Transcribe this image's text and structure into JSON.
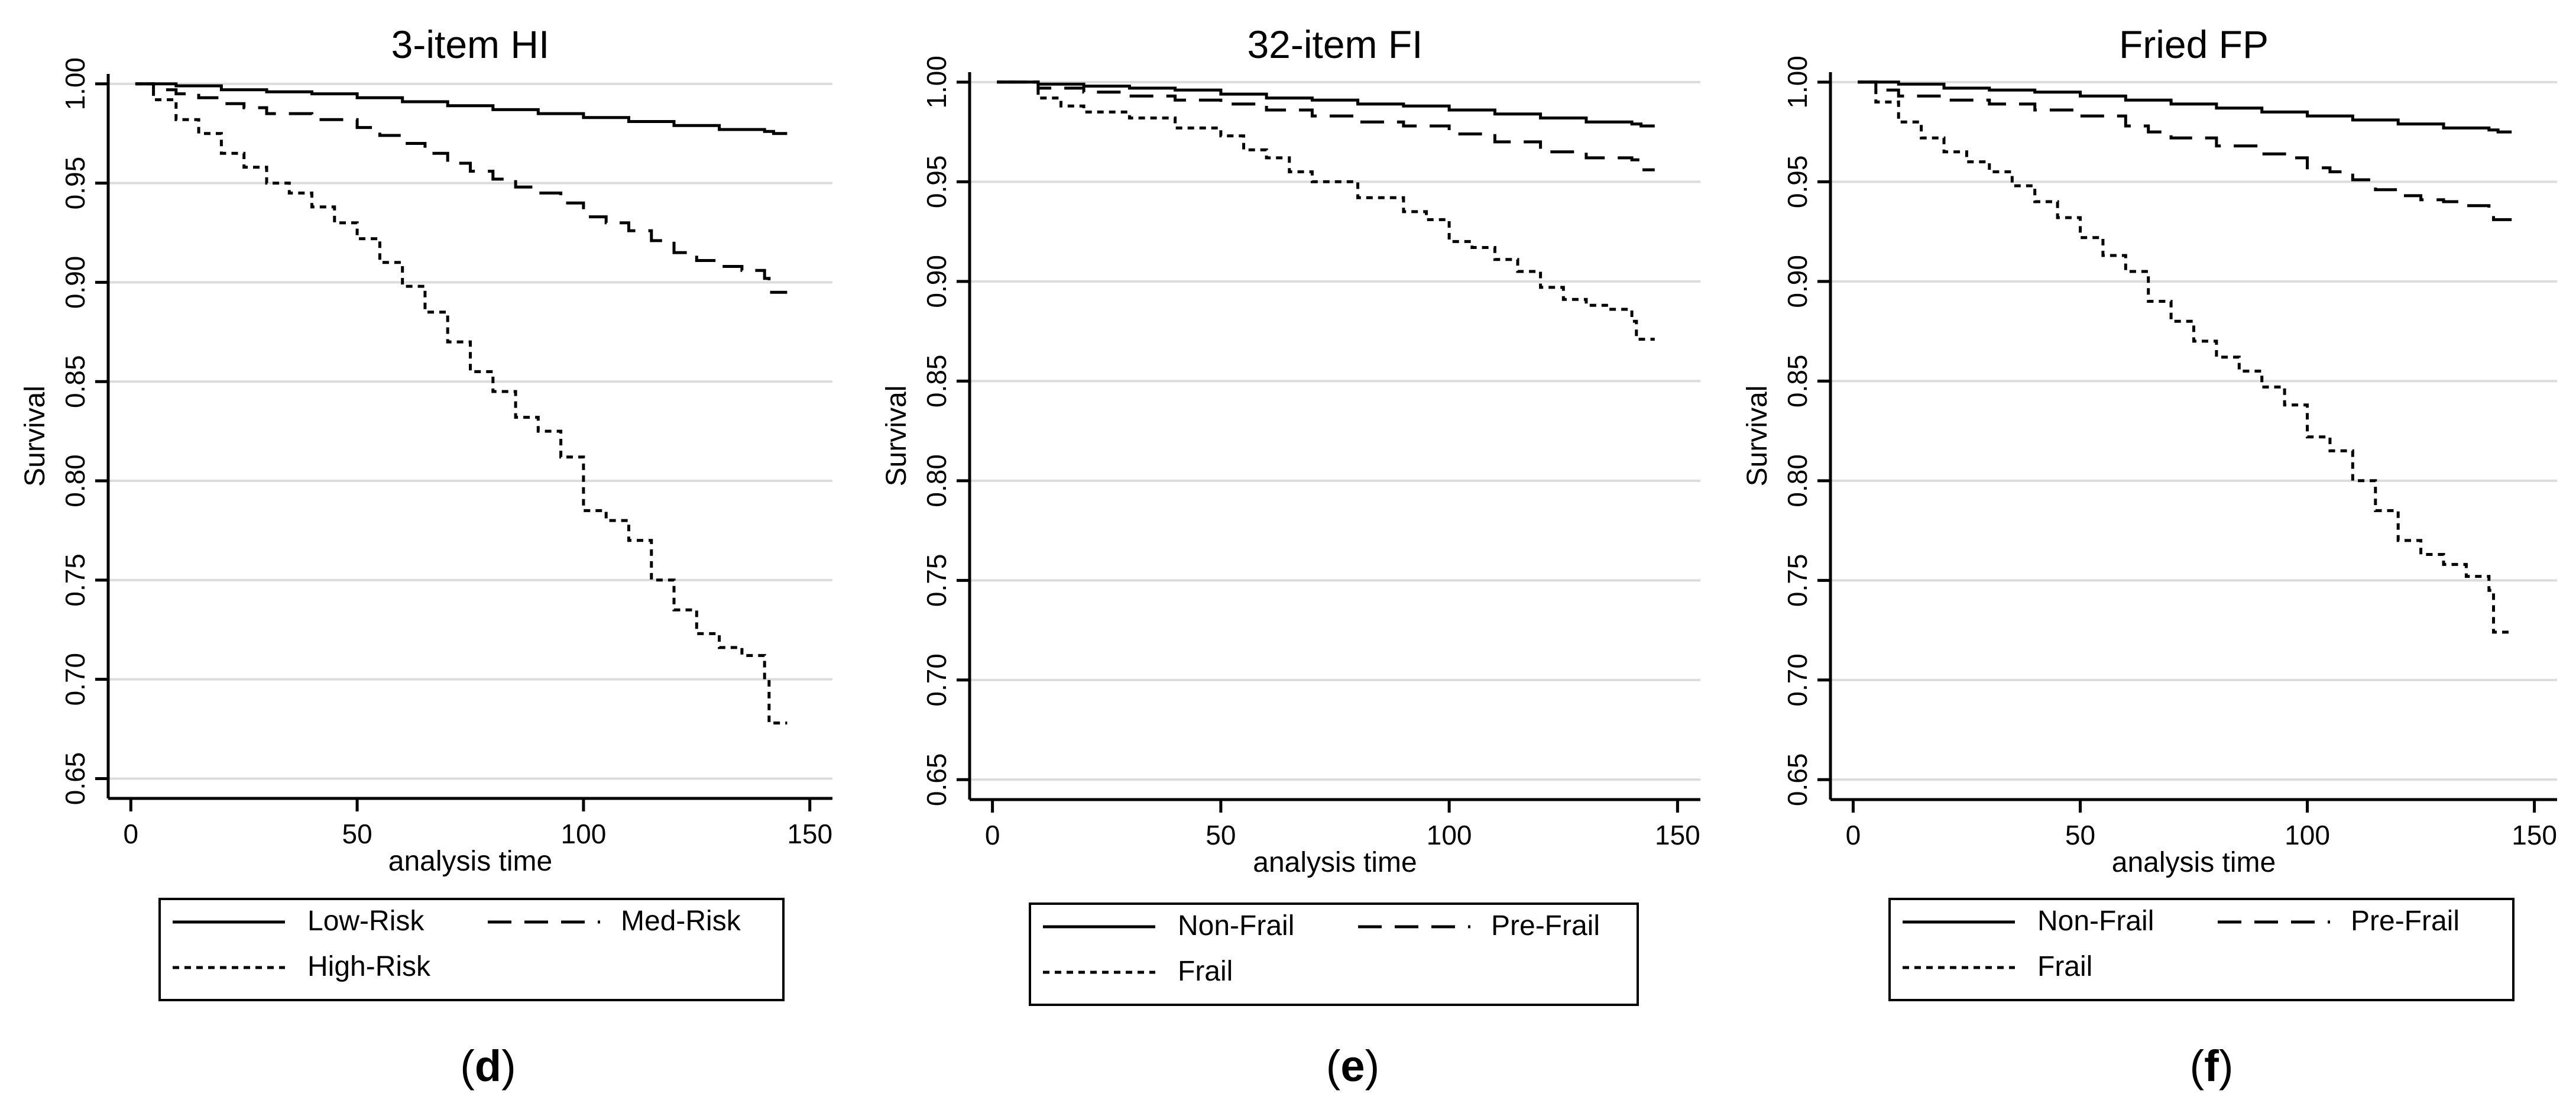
{
  "colors": {
    "background": "#ffffff",
    "grid": "#dcdcdc",
    "axis": "#000000",
    "line": "#000000"
  },
  "chart_data": [
    {
      "type": "line",
      "title": "3-item HI",
      "xlabel": "analysis time",
      "ylabel": "Survival",
      "xlim": [
        -5,
        155
      ],
      "ylim": [
        0.64,
        1.005
      ],
      "xticks": [
        0,
        50,
        100,
        150
      ],
      "xtick_labels": [
        "0",
        "50",
        "100",
        "150"
      ],
      "yticks": [
        0.65,
        0.7,
        0.75,
        0.8,
        0.85,
        0.9,
        0.95,
        1.0
      ],
      "ytick_labels": [
        "0.65",
        "0.70",
        "0.75",
        "0.80",
        "0.85",
        "0.90",
        "0.95",
        "1.00"
      ],
      "grid": true,
      "legend_position": "bottom",
      "panel_label": "(d)",
      "panel_letter": "d",
      "series": [
        {
          "name": "Low-Risk",
          "style": "solid",
          "x": [
            1,
            10,
            20,
            30,
            40,
            50,
            60,
            70,
            80,
            90,
            100,
            110,
            120,
            130,
            140,
            142,
            145
          ],
          "y": [
            1.0,
            0.999,
            0.997,
            0.996,
            0.995,
            0.993,
            0.991,
            0.989,
            0.987,
            0.985,
            0.983,
            0.981,
            0.979,
            0.977,
            0.976,
            0.975,
            0.975
          ]
        },
        {
          "name": "Med-Risk",
          "style": "dashed",
          "x": [
            1,
            5,
            10,
            15,
            20,
            25,
            30,
            40,
            50,
            55,
            60,
            65,
            70,
            75,
            80,
            85,
            90,
            95,
            100,
            105,
            110,
            115,
            120,
            125,
            130,
            135,
            140,
            141,
            145
          ],
          "y": [
            1.0,
            0.997,
            0.995,
            0.993,
            0.99,
            0.988,
            0.985,
            0.982,
            0.978,
            0.974,
            0.97,
            0.965,
            0.96,
            0.956,
            0.952,
            0.948,
            0.945,
            0.94,
            0.933,
            0.93,
            0.926,
            0.921,
            0.915,
            0.911,
            0.908,
            0.906,
            0.902,
            0.895,
            0.895
          ]
        },
        {
          "name": "High-Risk",
          "style": "dotted",
          "x": [
            1,
            5,
            10,
            15,
            20,
            25,
            30,
            35,
            40,
            45,
            50,
            55,
            60,
            65,
            70,
            75,
            80,
            85,
            90,
            95,
            100,
            105,
            110,
            115,
            120,
            125,
            130,
            135,
            140,
            141,
            145
          ],
          "y": [
            1.0,
            0.992,
            0.982,
            0.975,
            0.965,
            0.958,
            0.95,
            0.945,
            0.938,
            0.93,
            0.922,
            0.91,
            0.898,
            0.885,
            0.87,
            0.855,
            0.845,
            0.832,
            0.825,
            0.812,
            0.785,
            0.78,
            0.77,
            0.75,
            0.735,
            0.723,
            0.716,
            0.712,
            0.7,
            0.678,
            0.678
          ]
        }
      ]
    },
    {
      "type": "line",
      "title": "32-item FI",
      "xlabel": "analysis time",
      "ylabel": "Survival",
      "xlim": [
        -5,
        155
      ],
      "ylim": [
        0.64,
        1.005
      ],
      "xticks": [
        0,
        50,
        100,
        150
      ],
      "xtick_labels": [
        "0",
        "50",
        "100",
        "150"
      ],
      "yticks": [
        0.65,
        0.7,
        0.75,
        0.8,
        0.85,
        0.9,
        0.95,
        1.0
      ],
      "ytick_labels": [
        "0.65",
        "0.70",
        "0.75",
        "0.80",
        "0.85",
        "0.90",
        "0.95",
        "1.00"
      ],
      "grid": true,
      "legend_position": "bottom",
      "panel_label": "(e)",
      "panel_letter": "e",
      "series": [
        {
          "name": "Non-Frail",
          "style": "solid",
          "x": [
            1,
            10,
            20,
            30,
            40,
            50,
            60,
            70,
            80,
            90,
            100,
            110,
            120,
            130,
            140,
            142,
            145
          ],
          "y": [
            1.0,
            0.999,
            0.998,
            0.997,
            0.996,
            0.994,
            0.992,
            0.991,
            0.989,
            0.988,
            0.986,
            0.984,
            0.982,
            0.98,
            0.979,
            0.978,
            0.978
          ]
        },
        {
          "name": "Pre-Frail",
          "style": "dashed",
          "x": [
            1,
            10,
            20,
            30,
            40,
            50,
            60,
            70,
            80,
            90,
            100,
            110,
            120,
            130,
            140,
            142,
            145
          ],
          "y": [
            1.0,
            0.997,
            0.995,
            0.993,
            0.991,
            0.989,
            0.986,
            0.983,
            0.98,
            0.978,
            0.974,
            0.97,
            0.965,
            0.962,
            0.961,
            0.956,
            0.956
          ]
        },
        {
          "name": "Frail",
          "style": "dotted",
          "x": [
            1,
            10,
            15,
            20,
            30,
            40,
            50,
            55,
            60,
            65,
            70,
            80,
            90,
            95,
            100,
            105,
            110,
            115,
            120,
            125,
            130,
            135,
            140,
            141,
            145
          ],
          "y": [
            1.0,
            0.992,
            0.988,
            0.985,
            0.982,
            0.977,
            0.973,
            0.966,
            0.962,
            0.955,
            0.95,
            0.942,
            0.935,
            0.931,
            0.92,
            0.917,
            0.911,
            0.905,
            0.897,
            0.891,
            0.888,
            0.886,
            0.88,
            0.871,
            0.871
          ]
        }
      ]
    },
    {
      "type": "line",
      "title": "Fried FP",
      "xlabel": "analysis time",
      "ylabel": "Survival",
      "xlim": [
        -5,
        155
      ],
      "ylim": [
        0.64,
        1.005
      ],
      "xticks": [
        0,
        50,
        100,
        150
      ],
      "xtick_labels": [
        "0",
        "50",
        "100",
        "150"
      ],
      "yticks": [
        0.65,
        0.7,
        0.75,
        0.8,
        0.85,
        0.9,
        0.95,
        1.0
      ],
      "ytick_labels": [
        "0.65",
        "0.70",
        "0.75",
        "0.80",
        "0.85",
        "0.90",
        "0.95",
        "1.00"
      ],
      "grid": true,
      "legend_position": "bottom",
      "panel_label": "(f)",
      "panel_letter": "f",
      "series": [
        {
          "name": "Non-Frail",
          "style": "solid",
          "x": [
            1,
            10,
            20,
            30,
            40,
            50,
            60,
            70,
            80,
            90,
            100,
            110,
            120,
            130,
            140,
            142,
            145
          ],
          "y": [
            1.0,
            0.999,
            0.997,
            0.996,
            0.995,
            0.993,
            0.991,
            0.989,
            0.987,
            0.985,
            0.983,
            0.981,
            0.979,
            0.977,
            0.976,
            0.975,
            0.975
          ]
        },
        {
          "name": "Pre-Frail",
          "style": "dashed",
          "x": [
            1,
            5,
            10,
            20,
            30,
            40,
            50,
            60,
            65,
            70,
            80,
            90,
            95,
            100,
            105,
            110,
            115,
            120,
            125,
            130,
            135,
            140,
            141,
            145
          ],
          "y": [
            1.0,
            0.996,
            0.993,
            0.991,
            0.989,
            0.986,
            0.983,
            0.978,
            0.975,
            0.972,
            0.968,
            0.964,
            0.962,
            0.957,
            0.955,
            0.951,
            0.946,
            0.943,
            0.941,
            0.94,
            0.938,
            0.936,
            0.931,
            0.931
          ]
        },
        {
          "name": "Frail",
          "style": "dotted",
          "x": [
            1,
            5,
            10,
            15,
            20,
            25,
            30,
            35,
            40,
            45,
            50,
            55,
            60,
            65,
            70,
            75,
            80,
            85,
            90,
            95,
            100,
            105,
            110,
            115,
            120,
            125,
            130,
            135,
            140,
            141,
            145
          ],
          "y": [
            1.0,
            0.99,
            0.98,
            0.972,
            0.965,
            0.96,
            0.955,
            0.948,
            0.94,
            0.932,
            0.922,
            0.913,
            0.905,
            0.89,
            0.88,
            0.87,
            0.862,
            0.855,
            0.847,
            0.838,
            0.822,
            0.815,
            0.8,
            0.785,
            0.77,
            0.763,
            0.758,
            0.752,
            0.745,
            0.724,
            0.724
          ]
        }
      ]
    }
  ]
}
